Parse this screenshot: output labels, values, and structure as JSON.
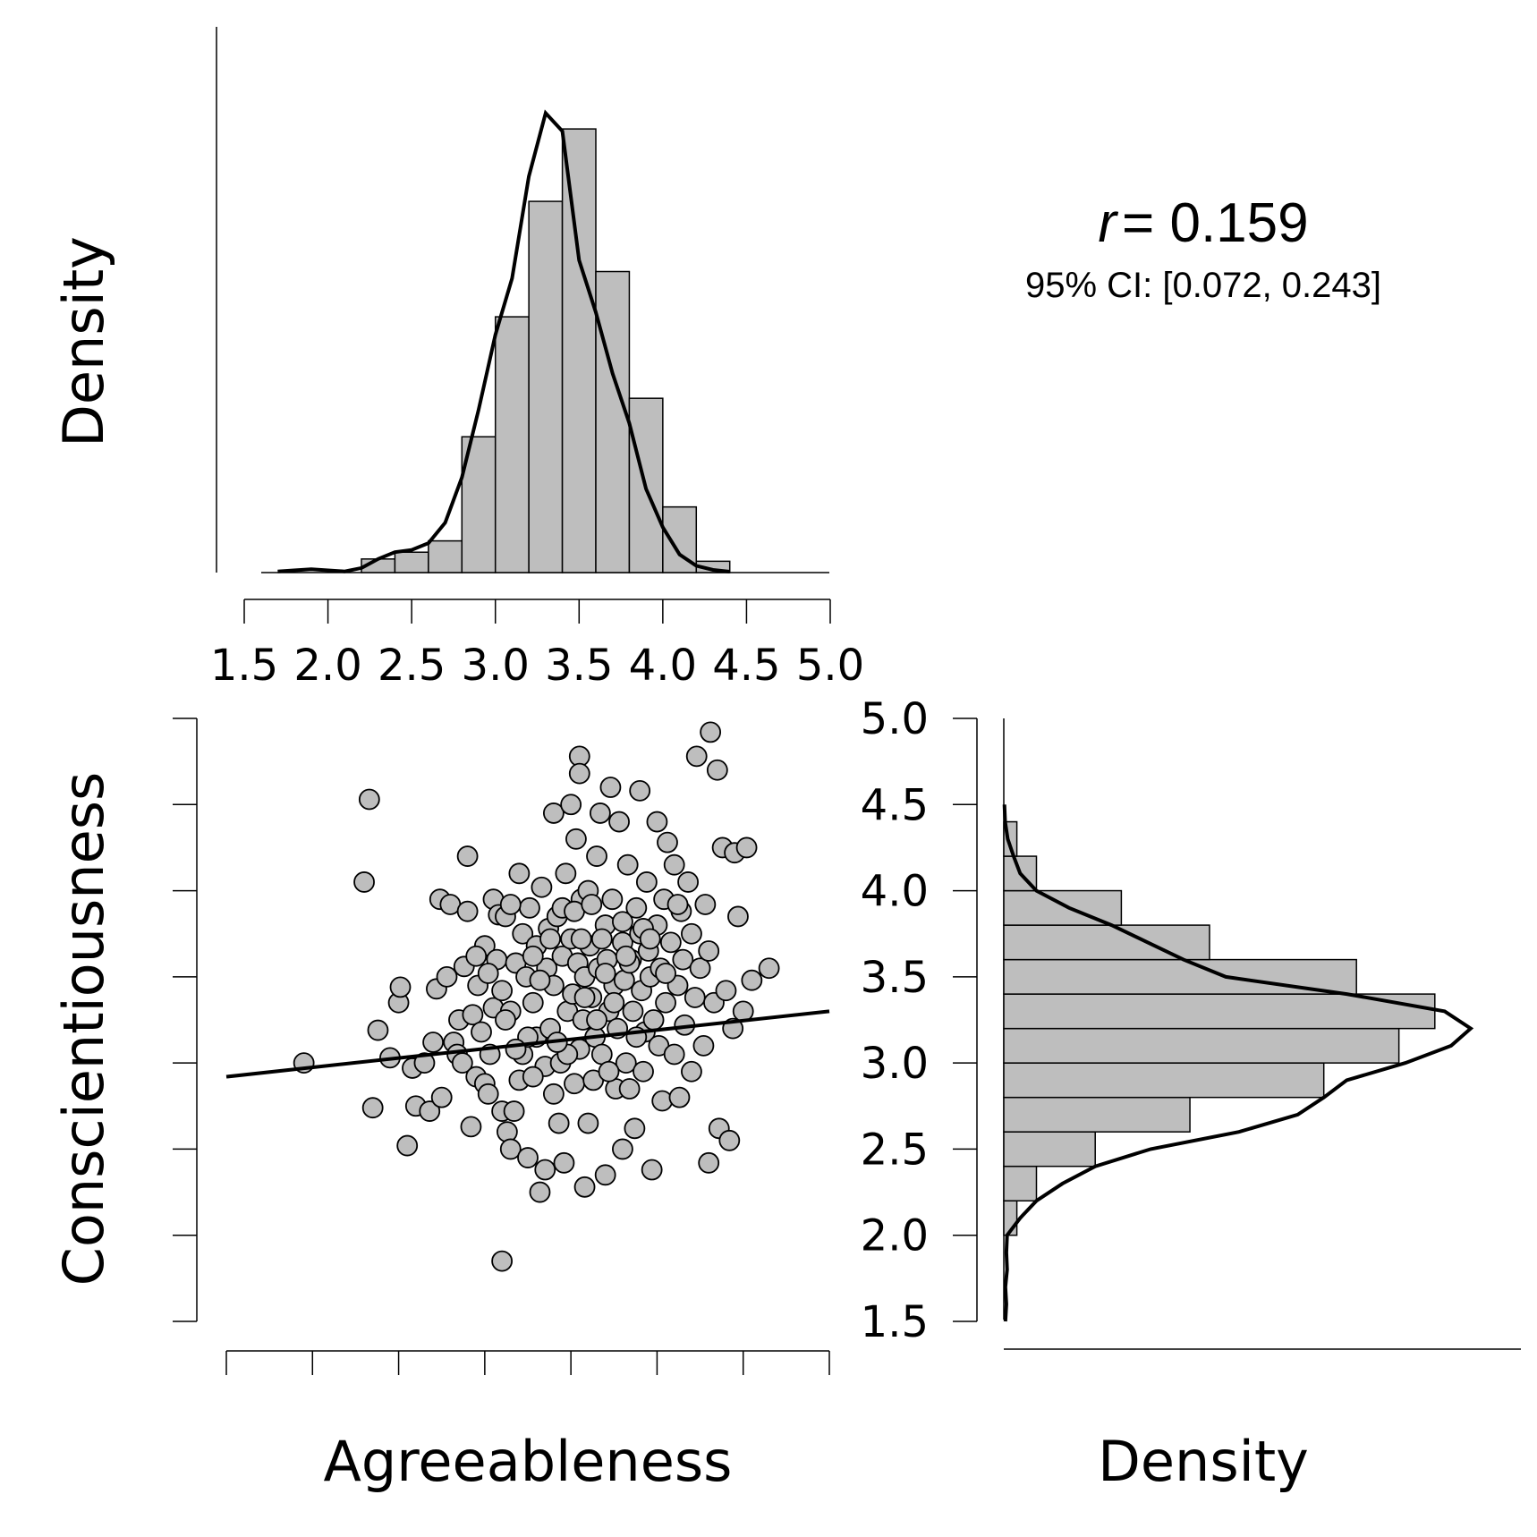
{
  "chart_data": {
    "type": "scatter",
    "x_variable": "Agreeableness",
    "y_variable": "Conscientiousness",
    "density_label": "Density",
    "correlation": {
      "r_symbol": "r",
      "r_value": "= 0.159",
      "ci": "95% CI: [0.072, 0.243]"
    },
    "x_axis": {
      "label": "Agreeableness",
      "range": [
        1.5,
        5.0
      ],
      "ticks": [
        "1.5",
        "2.0",
        "2.5",
        "3.0",
        "3.5",
        "4.0",
        "4.5",
        "5.0"
      ]
    },
    "y_axis": {
      "label": "Conscientiousness",
      "range": [
        1.5,
        5.0
      ],
      "ticks": [
        "1.5",
        "2.0",
        "2.5",
        "3.0",
        "3.5",
        "4.0",
        "4.5",
        "5.0"
      ]
    },
    "regression_line": {
      "x": [
        1.5,
        5.0
      ],
      "y": [
        2.92,
        3.3
      ]
    },
    "x_histogram": {
      "bin_edges": [
        2.2,
        2.4,
        2.6,
        2.8,
        3.0,
        3.2,
        3.4,
        3.6,
        3.8,
        4.0,
        4.2,
        4.4
      ],
      "heights": [
        0.06,
        0.09,
        0.14,
        0.6,
        1.13,
        1.64,
        1.96,
        1.33,
        0.77,
        0.29,
        0.05
      ],
      "density_curve": [
        [
          1.7,
          0.005
        ],
        [
          1.9,
          0.015
        ],
        [
          2.0,
          0.01
        ],
        [
          2.1,
          0.005
        ],
        [
          2.2,
          0.02
        ],
        [
          2.3,
          0.06
        ],
        [
          2.4,
          0.09
        ],
        [
          2.5,
          0.1
        ],
        [
          2.6,
          0.13
        ],
        [
          2.7,
          0.22
        ],
        [
          2.8,
          0.42
        ],
        [
          2.9,
          0.72
        ],
        [
          3.0,
          1.05
        ],
        [
          3.1,
          1.3
        ],
        [
          3.2,
          1.75
        ],
        [
          3.3,
          2.03
        ],
        [
          3.4,
          1.95
        ],
        [
          3.5,
          1.38
        ],
        [
          3.6,
          1.15
        ],
        [
          3.7,
          0.88
        ],
        [
          3.8,
          0.66
        ],
        [
          3.9,
          0.37
        ],
        [
          4.0,
          0.2
        ],
        [
          4.1,
          0.08
        ],
        [
          4.2,
          0.03
        ],
        [
          4.3,
          0.012
        ],
        [
          4.4,
          0.004
        ]
      ]
    },
    "y_histogram": {
      "bin_edges": [
        2.0,
        2.2,
        2.4,
        2.6,
        2.8,
        3.0,
        3.2,
        3.4,
        3.6,
        3.8,
        4.0,
        4.2,
        4.4
      ],
      "heights": [
        0.04,
        0.1,
        0.28,
        0.57,
        0.98,
        1.21,
        1.32,
        1.08,
        0.63,
        0.36,
        0.1,
        0.04
      ],
      "density_curve": [
        [
          1.5,
          0.005
        ],
        [
          1.6,
          0.008
        ],
        [
          1.7,
          0.005
        ],
        [
          1.8,
          0.01
        ],
        [
          1.9,
          0.008
        ],
        [
          2.0,
          0.01
        ],
        [
          2.1,
          0.05
        ],
        [
          2.2,
          0.1
        ],
        [
          2.3,
          0.18
        ],
        [
          2.4,
          0.28
        ],
        [
          2.5,
          0.45
        ],
        [
          2.6,
          0.72
        ],
        [
          2.7,
          0.9
        ],
        [
          2.8,
          0.98
        ],
        [
          2.9,
          1.05
        ],
        [
          3.0,
          1.23
        ],
        [
          3.1,
          1.37
        ],
        [
          3.2,
          1.43
        ],
        [
          3.3,
          1.35
        ],
        [
          3.4,
          1.05
        ],
        [
          3.5,
          0.68
        ],
        [
          3.6,
          0.55
        ],
        [
          3.7,
          0.44
        ],
        [
          3.8,
          0.33
        ],
        [
          3.9,
          0.2
        ],
        [
          4.0,
          0.1
        ],
        [
          4.1,
          0.05
        ],
        [
          4.2,
          0.03
        ],
        [
          4.3,
          0.012
        ],
        [
          4.4,
          0.004
        ],
        [
          4.5,
          0.002
        ]
      ]
    },
    "points": [
      [
        1.95,
        3.0
      ],
      [
        2.3,
        4.05
      ],
      [
        2.33,
        4.53
      ],
      [
        2.35,
        2.74
      ],
      [
        2.38,
        3.19
      ],
      [
        2.45,
        3.03
      ],
      [
        2.5,
        3.35
      ],
      [
        2.51,
        3.44
      ],
      [
        2.55,
        2.52
      ],
      [
        2.58,
        2.97
      ],
      [
        2.6,
        2.75
      ],
      [
        2.68,
        2.72
      ],
      [
        2.72,
        3.43
      ],
      [
        2.74,
        3.95
      ],
      [
        2.75,
        2.8
      ],
      [
        2.78,
        3.5
      ],
      [
        2.8,
        3.92
      ],
      [
        2.82,
        3.12
      ],
      [
        2.84,
        3.05
      ],
      [
        2.85,
        3.25
      ],
      [
        2.87,
        3.0
      ],
      [
        2.88,
        3.56
      ],
      [
        2.9,
        4.2
      ],
      [
        2.9,
        3.88
      ],
      [
        2.92,
        2.63
      ],
      [
        2.93,
        3.28
      ],
      [
        2.95,
        2.92
      ],
      [
        2.96,
        3.45
      ],
      [
        2.98,
        3.18
      ],
      [
        3.0,
        2.88
      ],
      [
        3.0,
        3.68
      ],
      [
        3.02,
        2.82
      ],
      [
        3.03,
        3.05
      ],
      [
        3.05,
        3.32
      ],
      [
        3.05,
        3.95
      ],
      [
        3.07,
        3.6
      ],
      [
        3.08,
        3.86
      ],
      [
        3.1,
        2.72
      ],
      [
        3.1,
        3.42
      ],
      [
        3.12,
        3.85
      ],
      [
        3.13,
        2.6
      ],
      [
        3.15,
        2.5
      ],
      [
        3.15,
        3.3
      ],
      [
        3.17,
        2.72
      ],
      [
        3.18,
        3.58
      ],
      [
        3.2,
        4.1
      ],
      [
        3.2,
        2.9
      ],
      [
        3.22,
        3.75
      ],
      [
        3.22,
        3.05
      ],
      [
        3.24,
        3.5
      ],
      [
        3.25,
        2.45
      ],
      [
        3.26,
        3.9
      ],
      [
        3.28,
        3.35
      ],
      [
        3.3,
        3.15
      ],
      [
        3.3,
        3.68
      ],
      [
        3.32,
        2.25
      ],
      [
        3.33,
        4.02
      ],
      [
        3.35,
        2.98
      ],
      [
        3.36,
        3.55
      ],
      [
        3.37,
        3.78
      ],
      [
        3.38,
        3.2
      ],
      [
        3.4,
        3.45
      ],
      [
        3.4,
        4.45
      ],
      [
        3.42,
        3.85
      ],
      [
        3.43,
        2.65
      ],
      [
        3.44,
        3.0
      ],
      [
        3.45,
        3.62
      ],
      [
        3.46,
        2.42
      ],
      [
        3.47,
        4.1
      ],
      [
        3.48,
        3.3
      ],
      [
        3.5,
        4.5
      ],
      [
        3.5,
        3.72
      ],
      [
        3.51,
        3.4
      ],
      [
        3.52,
        2.88
      ],
      [
        3.53,
        4.3
      ],
      [
        3.54,
        3.58
      ],
      [
        3.55,
        3.08
      ],
      [
        3.56,
        3.95
      ],
      [
        3.57,
        3.25
      ],
      [
        3.58,
        3.5
      ],
      [
        3.6,
        2.65
      ],
      [
        3.6,
        4.0
      ],
      [
        3.61,
        3.68
      ],
      [
        3.62,
        3.38
      ],
      [
        3.63,
        2.9
      ],
      [
        3.64,
        3.15
      ],
      [
        3.65,
        4.2
      ],
      [
        3.66,
        3.55
      ],
      [
        3.67,
        4.45
      ],
      [
        3.68,
        3.05
      ],
      [
        3.7,
        3.8
      ],
      [
        3.7,
        2.35
      ],
      [
        3.71,
        3.6
      ],
      [
        3.72,
        3.3
      ],
      [
        3.73,
        4.6
      ],
      [
        3.74,
        3.95
      ],
      [
        3.75,
        3.45
      ],
      [
        3.76,
        2.85
      ],
      [
        3.77,
        3.2
      ],
      [
        3.78,
        4.4
      ],
      [
        3.8,
        3.7
      ],
      [
        3.8,
        2.5
      ],
      [
        3.81,
        3.48
      ],
      [
        3.82,
        3.0
      ],
      [
        3.83,
        4.15
      ],
      [
        3.84,
        2.85
      ],
      [
        3.85,
        3.6
      ],
      [
        3.86,
        3.3
      ],
      [
        3.87,
        2.62
      ],
      [
        3.88,
        3.9
      ],
      [
        3.9,
        3.75
      ],
      [
        3.9,
        4.58
      ],
      [
        3.91,
        3.42
      ],
      [
        3.92,
        2.95
      ],
      [
        3.93,
        3.18
      ],
      [
        3.94,
        4.05
      ],
      [
        3.95,
        3.65
      ],
      [
        3.96,
        3.5
      ],
      [
        3.97,
        2.38
      ],
      [
        3.98,
        3.25
      ],
      [
        4.0,
        3.8
      ],
      [
        4.0,
        4.4
      ],
      [
        4.01,
        3.1
      ],
      [
        4.02,
        3.55
      ],
      [
        4.03,
        2.78
      ],
      [
        4.04,
        3.95
      ],
      [
        4.05,
        3.35
      ],
      [
        4.06,
        4.28
      ],
      [
        4.08,
        3.7
      ],
      [
        4.1,
        3.05
      ],
      [
        4.1,
        4.15
      ],
      [
        4.12,
        3.45
      ],
      [
        4.13,
        2.8
      ],
      [
        4.14,
        3.88
      ],
      [
        4.15,
        3.6
      ],
      [
        4.16,
        3.22
      ],
      [
        4.18,
        4.05
      ],
      [
        4.2,
        3.75
      ],
      [
        4.2,
        2.95
      ],
      [
        4.22,
        3.38
      ],
      [
        4.23,
        4.78
      ],
      [
        4.25,
        3.55
      ],
      [
        4.27,
        3.1
      ],
      [
        4.28,
        3.92
      ],
      [
        4.3,
        3.65
      ],
      [
        4.3,
        2.42
      ],
      [
        4.31,
        4.92
      ],
      [
        4.33,
        3.35
      ],
      [
        4.35,
        4.7
      ],
      [
        4.36,
        2.62
      ],
      [
        4.38,
        4.25
      ],
      [
        4.4,
        3.42
      ],
      [
        4.42,
        2.55
      ],
      [
        4.44,
        3.2
      ],
      [
        4.45,
        4.22
      ],
      [
        4.47,
        3.85
      ],
      [
        4.5,
        3.3
      ],
      [
        4.52,
        4.25
      ],
      [
        4.55,
        3.48
      ],
      [
        4.65,
        3.55
      ],
      [
        3.1,
        1.85
      ],
      [
        3.55,
        4.78
      ],
      [
        3.55,
        4.68
      ],
      [
        2.7,
        3.12
      ],
      [
        2.65,
        3.0
      ],
      [
        3.35,
        2.38
      ],
      [
        3.58,
        2.28
      ],
      [
        3.45,
        3.9
      ],
      [
        3.28,
        3.62
      ],
      [
        3.15,
        3.92
      ],
      [
        3.25,
        3.15
      ],
      [
        3.38,
        3.72
      ],
      [
        3.52,
        3.88
      ],
      [
        3.62,
        3.92
      ],
      [
        3.68,
        3.72
      ],
      [
        3.75,
        3.35
      ],
      [
        3.84,
        3.58
      ],
      [
        3.92,
        3.78
      ],
      [
        3.02,
        3.52
      ],
      [
        2.95,
        3.62
      ],
      [
        3.12,
        3.25
      ],
      [
        3.48,
        3.05
      ],
      [
        3.32,
        3.48
      ],
      [
        3.4,
        2.82
      ],
      [
        3.58,
        3.38
      ],
      [
        3.65,
        3.25
      ],
      [
        3.72,
        2.95
      ],
      [
        3.8,
        3.82
      ],
      [
        3.88,
        3.15
      ],
      [
        3.96,
        3.72
      ],
      [
        4.05,
        3.52
      ],
      [
        4.12,
        3.92
      ],
      [
        3.18,
        3.08
      ],
      [
        3.28,
        2.92
      ],
      [
        3.42,
        3.12
      ],
      [
        3.56,
        3.72
      ],
      [
        3.7,
        3.52
      ],
      [
        3.82,
        3.62
      ]
    ]
  }
}
